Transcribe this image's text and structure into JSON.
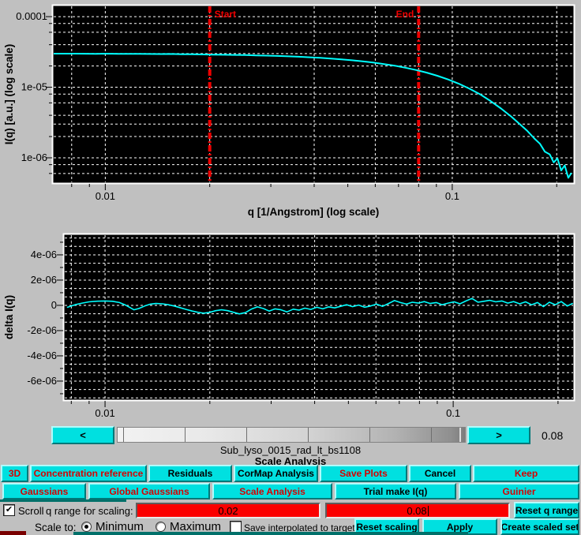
{
  "colors": {
    "accent_cyan": "#00e0e0",
    "button_text_red": "#d80000",
    "field_red": "#fb0000",
    "teal_background": "#00706a",
    "plot_curve": "#00ffff",
    "marker_red": "#f00000"
  },
  "chart_data": [
    {
      "type": "line",
      "title": "",
      "xlabel": "q [1/Angstrom] (log scale)",
      "ylabel": "I(q) [a.u.] (log scale)",
      "xscale": "log",
      "yscale": "log",
      "xlim": [
        0.0071,
        0.223
      ],
      "ylim": [
        4.5e-07,
        0.00014
      ],
      "grid": true,
      "legend": false,
      "xticks": [
        {
          "v": 0.01,
          "label": "0.01"
        },
        {
          "v": 0.1,
          "label": "0.1"
        }
      ],
      "yticks": [
        {
          "v": 0.0001,
          "label": "0.0001"
        },
        {
          "v": 1e-05,
          "label": "1e-05"
        },
        {
          "v": 1e-06,
          "label": "1e-06"
        }
      ],
      "markers": [
        {
          "value": 0.02,
          "label": "Start",
          "side": "right"
        },
        {
          "value": 0.08,
          "label": "End",
          "side": "left"
        }
      ],
      "series": [
        {
          "name": "I(q)",
          "color": "#00ffff",
          "points": [
            [
              0.0071,
              2.99e-05
            ],
            [
              0.0076,
              2.985e-05
            ],
            [
              0.0082,
              2.99e-05
            ],
            [
              0.0088,
              2.98e-05
            ],
            [
              0.0094,
              2.975e-05
            ],
            [
              0.0101,
              2.985e-05
            ],
            [
              0.0109,
              2.97e-05
            ],
            [
              0.0117,
              2.965e-05
            ],
            [
              0.0125,
              2.975e-05
            ],
            [
              0.0134,
              2.96e-05
            ],
            [
              0.0144,
              2.95e-05
            ],
            [
              0.0155,
              2.96e-05
            ],
            [
              0.0166,
              2.935e-05
            ],
            [
              0.0178,
              2.925e-05
            ],
            [
              0.0191,
              2.915e-05
            ],
            [
              0.0205,
              2.9e-05
            ],
            [
              0.022,
              2.885e-05
            ],
            [
              0.0236,
              2.87e-05
            ],
            [
              0.0254,
              2.85e-05
            ],
            [
              0.0272,
              2.825e-05
            ],
            [
              0.0292,
              2.8e-05
            ],
            [
              0.0314,
              2.77e-05
            ],
            [
              0.0337,
              2.735e-05
            ],
            [
              0.0361,
              2.7e-05
            ],
            [
              0.0388,
              2.655e-05
            ],
            [
              0.0416,
              2.605e-05
            ],
            [
              0.0447,
              2.55e-05
            ],
            [
              0.0479,
              2.485e-05
            ],
            [
              0.0514,
              2.41e-05
            ],
            [
              0.0552,
              2.33e-05
            ],
            [
              0.0592,
              2.235e-05
            ],
            [
              0.0636,
              2.13e-05
            ],
            [
              0.0682,
              2.02e-05
            ],
            [
              0.0732,
              1.89e-05
            ],
            [
              0.0786,
              1.755e-05
            ],
            [
              0.0843,
              1.61e-05
            ],
            [
              0.0905,
              1.455e-05
            ],
            [
              0.0971,
              1.29e-05
            ],
            [
              0.1042,
              1.125e-05
            ],
            [
              0.1118,
              9.6e-06
            ],
            [
              0.12,
              8e-06
            ],
            [
              0.1288,
              6.4e-06
            ],
            [
              0.1382,
              5e-06
            ],
            [
              0.1483,
              3.8e-06
            ],
            [
              0.156,
              3.05e-06
            ],
            [
              0.164,
              2.45e-06
            ],
            [
              0.1724,
              1.88e-06
            ],
            [
              0.179,
              1.58e-06
            ],
            [
              0.185,
              1.22e-06
            ],
            [
              0.191,
              1.12e-06
            ],
            [
              0.196,
              8.6e-07
            ],
            [
              0.201,
              9.8e-07
            ],
            [
              0.206,
              6.6e-07
            ],
            [
              0.211,
              7.8e-07
            ],
            [
              0.216,
              5.2e-07
            ],
            [
              0.22,
              6e-07
            ]
          ]
        }
      ]
    },
    {
      "type": "line",
      "title": "",
      "xlabel": "",
      "ylabel": "delta I(q)",
      "xscale": "log",
      "yscale": "linear",
      "xlim": [
        0.00766,
        0.221
      ],
      "ylim": [
        -7.44e-06,
        5.56e-06
      ],
      "grid": true,
      "legend": false,
      "xticks": [
        {
          "v": 0.01,
          "label": "0.01"
        },
        {
          "v": 0.1,
          "label": "0.1"
        }
      ],
      "yticks": [
        {
          "v": 4e-06,
          "label": "4e-06"
        },
        {
          "v": 2e-06,
          "label": "2e-06"
        },
        {
          "v": 0,
          "label": "0"
        },
        {
          "v": -2e-06,
          "label": "-2e-06"
        },
        {
          "v": -4e-06,
          "label": "-4e-06"
        },
        {
          "v": -6e-06,
          "label": "-6e-06"
        }
      ],
      "markers": [],
      "series": [
        {
          "name": "delta I(q)",
          "color": "#00ffff",
          "points": [
            [
              0.0078,
              -1.5e-07
            ],
            [
              0.0082,
              5e-08
            ],
            [
              0.0086,
              1.8e-07
            ],
            [
              0.009,
              2.8e-07
            ],
            [
              0.0095,
              3.3e-07
            ],
            [
              0.01,
              3.5e-07
            ],
            [
              0.0105,
              3.2e-07
            ],
            [
              0.011,
              2.2e-07
            ],
            [
              0.0114,
              5e-08
            ],
            [
              0.0118,
              -1.8e-07
            ],
            [
              0.0121,
              -3.5e-07
            ],
            [
              0.0125,
              -2.5e-07
            ],
            [
              0.013,
              -5e-08
            ],
            [
              0.0135,
              1e-07
            ],
            [
              0.014,
              1.5e-07
            ],
            [
              0.0146,
              1.2e-07
            ],
            [
              0.0152,
              5e-08
            ],
            [
              0.0158,
              -5e-08
            ],
            [
              0.0164,
              -1.8e-07
            ],
            [
              0.0171,
              -3.2e-07
            ],
            [
              0.0178,
              -4.5e-07
            ],
            [
              0.0185,
              -5.5e-07
            ],
            [
              0.0192,
              -6.2e-07
            ],
            [
              0.02,
              -5.5e-07
            ],
            [
              0.0208,
              -4.2e-07
            ],
            [
              0.0216,
              -3.5e-07
            ],
            [
              0.0225,
              -4.2e-07
            ],
            [
              0.0234,
              -5.5e-07
            ],
            [
              0.0243,
              -6.8e-07
            ],
            [
              0.0253,
              -5.8e-07
            ],
            [
              0.0263,
              -3e-07
            ],
            [
              0.0274,
              -1.2e-07
            ],
            [
              0.0285,
              -2.5e-07
            ],
            [
              0.0296,
              -4.5e-07
            ],
            [
              0.0308,
              -2.8e-07
            ],
            [
              0.032,
              -3.5e-07
            ],
            [
              0.0333,
              -5.2e-07
            ],
            [
              0.0347,
              -3e-07
            ],
            [
              0.0361,
              -3.8e-07
            ],
            [
              0.0375,
              -2.2e-07
            ],
            [
              0.039,
              -3.2e-07
            ],
            [
              0.0406,
              -1.5e-07
            ],
            [
              0.0422,
              -2.8e-07
            ],
            [
              0.0439,
              -1.2e-07
            ],
            [
              0.0457,
              -2e-07
            ],
            [
              0.0475,
              -8e-08
            ],
            [
              0.0494,
              5e-08
            ],
            [
              0.0514,
              -1e-07
            ],
            [
              0.0535,
              2e-08
            ],
            [
              0.0557,
              -1.5e-07
            ],
            [
              0.0579,
              -5e-08
            ],
            [
              0.0602,
              1e-07
            ],
            [
              0.0627,
              -8e-08
            ],
            [
              0.0652,
              1.5e-07
            ],
            [
              0.0678,
              3.8e-07
            ],
            [
              0.0705,
              2.2e-07
            ],
            [
              0.0734,
              1e-07
            ],
            [
              0.0763,
              2.5e-07
            ],
            [
              0.0794,
              1.8e-07
            ],
            [
              0.0826,
              3e-07
            ],
            [
              0.0859,
              1.5e-07
            ],
            [
              0.0894,
              2.2e-07
            ],
            [
              0.093,
              5e-08
            ],
            [
              0.0967,
              1.8e-07
            ],
            [
              0.1006,
              2.8e-07
            ],
            [
              0.1046,
              1.2e-07
            ],
            [
              0.1088,
              3.5e-07
            ],
            [
              0.1132,
              5.5e-07
            ],
            [
              0.1178,
              2.5e-07
            ],
            [
              0.1225,
              3.2e-07
            ],
            [
              0.1274,
              4e-07
            ],
            [
              0.1325,
              2.8e-07
            ],
            [
              0.1379,
              3.5e-07
            ],
            [
              0.1434,
              1.8e-07
            ],
            [
              0.1492,
              3e-07
            ],
            [
              0.1552,
              1.2e-07
            ],
            [
              0.1614,
              2.8e-07
            ],
            [
              0.1679,
              5e-08
            ],
            [
              0.1746,
              2.2e-07
            ],
            [
              0.1816,
              -1e-07
            ],
            [
              0.1889,
              2.5e-07
            ],
            [
              0.1965,
              5e-08
            ],
            [
              0.2044,
              3e-07
            ],
            [
              0.2126,
              -5e-08
            ],
            [
              0.22,
              1.5e-07
            ]
          ]
        }
      ]
    }
  ],
  "scrollbar": {
    "left_button": "<",
    "right_button": ">",
    "value": "0.08"
  },
  "labels": {
    "filename": "Sub_lyso_0015_rad_lt_bs1108",
    "section_title": "Scale Analysis"
  },
  "buttons": {
    "row1": [
      "3D",
      "Concentration reference",
      "Residuals",
      "CorMap Analysis",
      "Save Plots",
      "Cancel",
      "Keep"
    ],
    "row2": [
      "Gaussians",
      "Global Gaussians",
      "Scale Analysis",
      "Trial make I(q)",
      "Guinier"
    ],
    "row3_reset": "Reset q range",
    "row4": [
      "Reset scaling",
      "Apply",
      "Create scaled set"
    ]
  },
  "controls": {
    "scroll_label": "Scroll",
    "scroll_checked": true,
    "qrange_label": "q range for scaling:",
    "q_min": "0.02",
    "q_max": "0.08",
    "scale_to_label": "Scale to:",
    "minimum_label": "Minimum",
    "maximum_label": "Maximum",
    "minimum_selected": true,
    "save_interpolated_label": "Save interpolated to target",
    "save_interpolated_checked": false
  }
}
